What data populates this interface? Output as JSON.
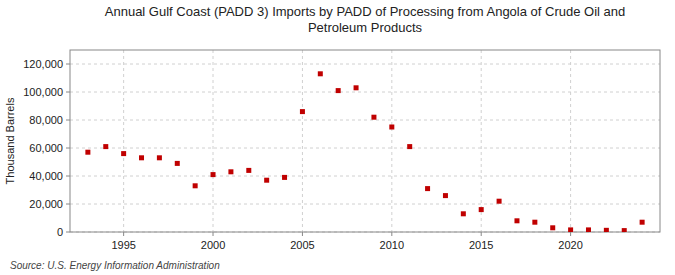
{
  "chart_data": {
    "type": "scatter",
    "title": "Annual Gulf Coast (PADD 3) Imports by PADD of Processing from Angola of Crude Oil and\nPetroleum Products",
    "y_label": "Thousand Barrels",
    "source": "Source: U.S. Energy Information Administration",
    "x": [
      1993,
      1994,
      1995,
      1996,
      1997,
      1998,
      1999,
      2000,
      2001,
      2002,
      2003,
      2004,
      2005,
      2006,
      2007,
      2008,
      2009,
      2010,
      2011,
      2012,
      2013,
      2014,
      2015,
      2016,
      2017,
      2018,
      2019,
      2020,
      2021,
      2022,
      2023,
      2024
    ],
    "values": [
      57000,
      61000,
      56000,
      53000,
      53000,
      49000,
      33000,
      41000,
      43000,
      44000,
      37000,
      39000,
      86000,
      113000,
      101000,
      103000,
      82000,
      75000,
      61000,
      31000,
      26000,
      13000,
      16000,
      22000,
      8000,
      7000,
      3000,
      1500,
      1500,
      1200,
      1000,
      7000
    ],
    "color": "#c00000",
    "marker": "square",
    "xlim": [
      1992,
      2025
    ],
    "xticks": [
      1995,
      2000,
      2005,
      2010,
      2015,
      2020
    ],
    "ylim": [
      0,
      130000
    ],
    "yticks": [
      0,
      {
        "value": 20000,
        "label": "20,000"
      },
      {
        "value": 40000,
        "label": "40,000"
      },
      {
        "value": 60000,
        "label": "60,000"
      },
      {
        "value": 80000,
        "label": "80,000"
      },
      {
        "value": 100000,
        "label": "100,000"
      },
      {
        "value": 120000,
        "label": "120,000"
      }
    ],
    "grid": true
  }
}
